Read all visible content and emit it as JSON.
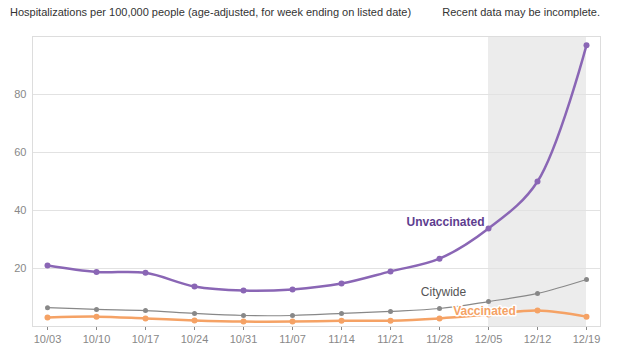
{
  "chart_data": {
    "type": "line",
    "title": "Hospitalizations per 100,000 people (age-adjusted, for week ending on listed date)",
    "x": [
      "10/03",
      "10/10",
      "10/17",
      "10/24",
      "10/31",
      "11/07",
      "11/14",
      "11/21",
      "11/28",
      "12/05",
      "12/12",
      "12/19"
    ],
    "series": [
      {
        "name": "Unvaccinated",
        "color": "#8a66b5",
        "marker": "circle",
        "values": [
          21.0,
          18.8,
          18.5,
          13.8,
          12.4,
          12.8,
          14.8,
          19.0,
          23.4,
          33.8,
          50.0,
          97.0
        ]
      },
      {
        "name": "Citywide",
        "color": "#888888",
        "marker": "circle",
        "values": [
          6.5,
          5.9,
          5.5,
          4.5,
          3.8,
          3.8,
          4.5,
          5.2,
          6.2,
          8.6,
          11.4,
          16.2
        ]
      },
      {
        "name": "Vaccinated",
        "color": "#f5a265",
        "marker": "circle",
        "values": [
          3.1,
          3.4,
          2.8,
          2.1,
          1.7,
          1.7,
          2.0,
          2.0,
          2.8,
          4.1,
          5.5,
          3.4
        ]
      }
    ],
    "annotations": [
      {
        "text": "Recent data may be incomplete.",
        "x_start": "12/05",
        "x_end": "12/19"
      }
    ],
    "ylim": [
      0,
      100
    ],
    "yticks": [
      20,
      40,
      60,
      80
    ],
    "grid": true
  }
}
